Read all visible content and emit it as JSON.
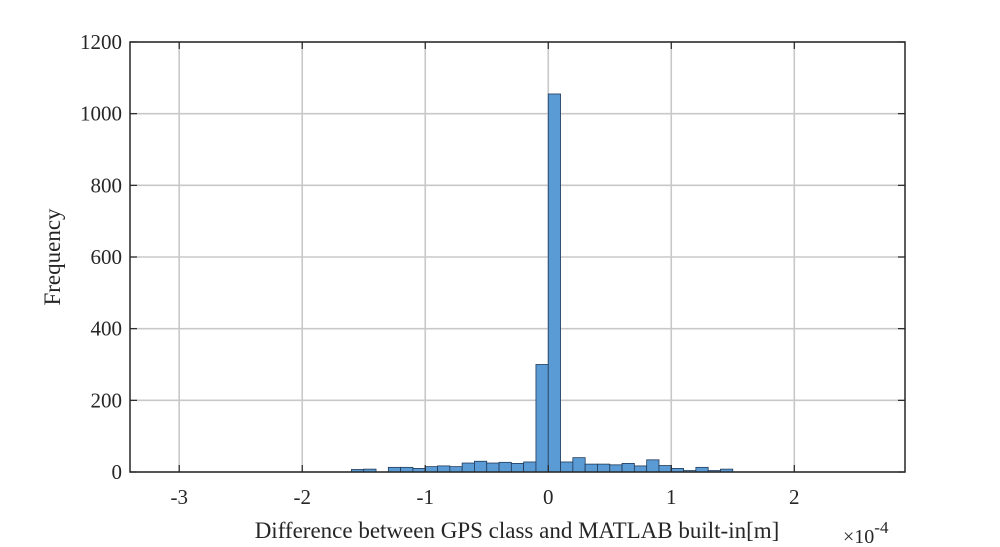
{
  "chart_data": {
    "type": "bar",
    "title": "",
    "xlabel": "Difference between GPS class and MATLAB built-in[m]",
    "ylabel": "Frequency",
    "x_exponent_label": "×10",
    "x_exponent_power": "-4",
    "xlim": [
      -3.4,
      2.9
    ],
    "ylim": [
      0,
      1200
    ],
    "xticks": [
      -3,
      -2,
      -1,
      0,
      1,
      2
    ],
    "xtick_labels": [
      "-3",
      "-2",
      "-1",
      "0",
      "1",
      "2"
    ],
    "yticks": [
      0,
      200,
      400,
      600,
      800,
      1000,
      1200
    ],
    "ytick_labels": [
      "0",
      "200",
      "400",
      "600",
      "800",
      "1000",
      "1200"
    ],
    "grid": true,
    "bar_color": "#5b9bd5",
    "bar_edge_color": "#1f3b5a",
    "bin_width": 0.1,
    "bin_edges_start": -1.6,
    "counts": [
      7,
      8,
      0,
      13,
      13,
      10,
      15,
      17,
      15,
      25,
      30,
      25,
      27,
      24,
      28,
      300,
      1055,
      28,
      40,
      22,
      22,
      20,
      24,
      17,
      34,
      18,
      10,
      4,
      13,
      4,
      8
    ]
  }
}
